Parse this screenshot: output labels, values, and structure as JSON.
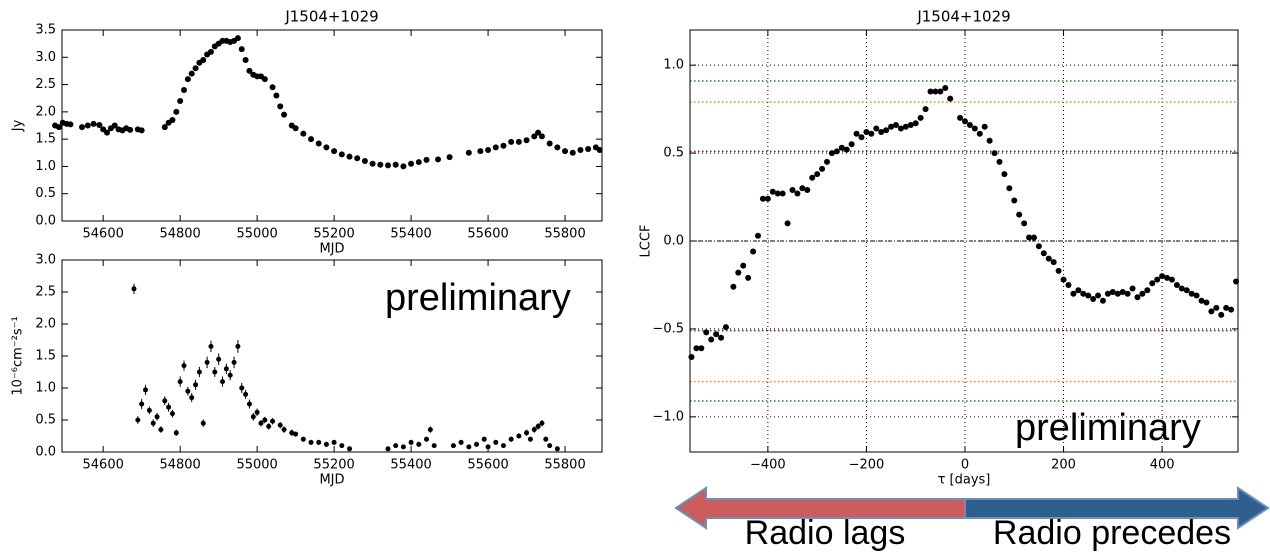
{
  "chart_data": [
    {
      "type": "scatter",
      "title": "J1504+1029",
      "xlabel": "MJD",
      "ylabel": "Jy",
      "color": "#000000",
      "xlim": [
        54493,
        55896
      ],
      "xticks": [
        54600,
        54800,
        55000,
        55200,
        55400,
        55600,
        55800
      ],
      "ylim": [
        0,
        3.5
      ],
      "yticks": [
        {
          "value": 0,
          "label": "0.0"
        },
        0.5,
        {
          "value": 1,
          "label": "1.0"
        },
        1.5,
        {
          "value": 2,
          "label": "2.0"
        },
        2.5,
        {
          "value": 3,
          "label": "3.0"
        },
        3.5
      ],
      "x": [
        54475,
        54485,
        54495,
        54505,
        54515,
        54545,
        54560,
        54575,
        54590,
        54600,
        54610,
        54620,
        54630,
        54640,
        54650,
        54660,
        54670,
        54690,
        54700,
        54760,
        54770,
        54780,
        54790,
        54800,
        54810,
        54820,
        54830,
        54840,
        54850,
        54860,
        54870,
        54880,
        54890,
        54900,
        54910,
        54920,
        54930,
        54940,
        54950,
        54960,
        54970,
        54980,
        54990,
        55000,
        55010,
        55020,
        55040,
        55050,
        55060,
        55070,
        55090,
        55100,
        55120,
        55140,
        55160,
        55180,
        55200,
        55220,
        55240,
        55260,
        55280,
        55300,
        55320,
        55340,
        55360,
        55380,
        55400,
        55420,
        55440,
        55470,
        55500,
        55550,
        55580,
        55600,
        55620,
        55640,
        55660,
        55680,
        55700,
        55720,
        55730,
        55740,
        55760,
        55780,
        55800,
        55820,
        55840,
        55860,
        55880,
        55890
      ],
      "values": [
        1.75,
        1.72,
        1.8,
        1.78,
        1.77,
        1.72,
        1.75,
        1.78,
        1.76,
        1.68,
        1.62,
        1.7,
        1.75,
        1.68,
        1.66,
        1.7,
        1.67,
        1.68,
        1.66,
        1.72,
        1.8,
        1.85,
        2.0,
        2.2,
        2.4,
        2.6,
        2.7,
        2.8,
        2.9,
        2.95,
        3.05,
        3.1,
        3.2,
        3.25,
        3.3,
        3.3,
        3.28,
        3.3,
        3.35,
        3.15,
        2.95,
        2.75,
        2.68,
        2.65,
        2.65,
        2.6,
        2.45,
        2.3,
        2.1,
        1.95,
        1.75,
        1.7,
        1.6,
        1.5,
        1.42,
        1.35,
        1.28,
        1.22,
        1.18,
        1.15,
        1.1,
        1.05,
        1.03,
        1.02,
        1.03,
        1.0,
        1.05,
        1.08,
        1.12,
        1.13,
        1.17,
        1.25,
        1.28,
        1.3,
        1.35,
        1.38,
        1.45,
        1.45,
        1.48,
        1.55,
        1.62,
        1.55,
        1.42,
        1.35,
        1.28,
        1.25,
        1.3,
        1.32,
        1.35,
        1.3
      ]
    },
    {
      "type": "errorbar",
      "xlabel": "MJD",
      "ylabel": "10⁻⁶cm⁻²s⁻¹",
      "color": "#000000",
      "annotation": {
        "text": "preliminary",
        "color": "#4f6228"
      },
      "xlim": [
        54493,
        55896
      ],
      "xticks": [
        54600,
        54800,
        55000,
        55200,
        55400,
        55600,
        55800
      ],
      "ylim": [
        0,
        3
      ],
      "yticks": [
        {
          "value": 0,
          "label": "0.0"
        },
        0.5,
        {
          "value": 1,
          "label": "1.0"
        },
        1.5,
        {
          "value": 2,
          "label": "2.0"
        },
        2.5,
        {
          "value": 3,
          "label": "3.0"
        }
      ],
      "x": [
        54680,
        54690,
        54700,
        54710,
        54720,
        54730,
        54740,
        54750,
        54760,
        54770,
        54780,
        54790,
        54800,
        54810,
        54820,
        54830,
        54840,
        54850,
        54860,
        54870,
        54880,
        54890,
        54900,
        54910,
        54920,
        54930,
        54940,
        54950,
        54960,
        54970,
        54980,
        54990,
        55000,
        55010,
        55020,
        55030,
        55040,
        55060,
        55070,
        55090,
        55100,
        55120,
        55140,
        55160,
        55180,
        55200,
        55220,
        55240,
        55340,
        55360,
        55380,
        55400,
        55420,
        55440,
        55450,
        55460,
        55510,
        55530,
        55550,
        55570,
        55590,
        55600,
        55620,
        55640,
        55660,
        55680,
        55700,
        55710,
        55720,
        55730,
        55740,
        55750,
        55760,
        55780
      ],
      "values": [
        2.55,
        0.5,
        0.75,
        0.97,
        0.65,
        0.45,
        0.55,
        0.35,
        0.8,
        0.7,
        0.6,
        0.3,
        1.1,
        1.35,
        0.95,
        0.85,
        1.05,
        1.25,
        0.45,
        1.4,
        1.65,
        1.25,
        1.45,
        1.1,
        1.3,
        1.2,
        1.4,
        1.65,
        1.0,
        0.9,
        0.75,
        0.55,
        0.62,
        0.45,
        0.5,
        0.4,
        0.48,
        0.42,
        0.35,
        0.3,
        0.28,
        0.2,
        0.15,
        0.15,
        0.12,
        0.15,
        0.1,
        0.05,
        0.05,
        0.1,
        0.08,
        0.15,
        0.12,
        0.2,
        0.35,
        0.1,
        0.1,
        0.15,
        0.08,
        0.12,
        0.2,
        0.08,
        0.15,
        0.1,
        0.2,
        0.25,
        0.3,
        0.2,
        0.35,
        0.4,
        0.45,
        0.2,
        0.1,
        0.05
      ],
      "errors": [
        0.08,
        0.06,
        0.08,
        0.08,
        0.06,
        0.06,
        0.06,
        0.05,
        0.07,
        0.07,
        0.06,
        0.05,
        0.08,
        0.08,
        0.07,
        0.07,
        0.08,
        0.08,
        0.06,
        0.09,
        0.09,
        0.08,
        0.09,
        0.08,
        0.08,
        0.08,
        0.09,
        0.1,
        0.08,
        0.07,
        0.07,
        0.06,
        0.06,
        0.05,
        0.05,
        0.05,
        0.05,
        0.05,
        0.05,
        0.05,
        0.04,
        0.04,
        0.04,
        0.04,
        0.04,
        0.04,
        0.03,
        0.03,
        0.03,
        0.03,
        0.03,
        0.04,
        0.04,
        0.04,
        0.05,
        0.03,
        0.03,
        0.04,
        0.03,
        0.04,
        0.04,
        0.03,
        0.04,
        0.03,
        0.04,
        0.04,
        0.05,
        0.04,
        0.05,
        0.05,
        0.05,
        0.04,
        0.03,
        0.03
      ]
    },
    {
      "type": "scatter",
      "title": "J1504+1029",
      "xlabel": "τ [days]",
      "ylabel": "LCCF",
      "color": "#000000",
      "grid": true,
      "annotation": {
        "text": "preliminary",
        "color": "#4f6228"
      },
      "levels": [
        {
          "color": "#1f7a1f",
          "values": [
            0.91,
            -0.91
          ]
        },
        {
          "color": "#ff7f0e",
          "values": [
            0.79,
            -0.8
          ]
        },
        {
          "color": "#8b1a1a",
          "values": [
            0.51,
            -0.51
          ]
        }
      ],
      "xlim": [
        -558,
        554
      ],
      "xticks": [
        {
          "value": -400,
          "label": "−400"
        },
        {
          "value": -200,
          "label": "−200"
        },
        0,
        200,
        400
      ],
      "ylim": [
        -1.2,
        1.2
      ],
      "yticks": [
        {
          "value": -1,
          "label": "−1.0"
        },
        {
          "value": -0.5,
          "label": "−0.5"
        },
        {
          "value": 0,
          "label": "0.0"
        },
        0.5,
        {
          "value": 1,
          "label": "1.0"
        }
      ],
      "x": [
        -555,
        -545,
        -535,
        -525,
        -515,
        -505,
        -495,
        -485,
        -470,
        -460,
        -450,
        -440,
        -430,
        -420,
        -410,
        -400,
        -390,
        -380,
        -370,
        -360,
        -350,
        -340,
        -330,
        -320,
        -310,
        -300,
        -290,
        -280,
        -270,
        -260,
        -250,
        -240,
        -230,
        -220,
        -210,
        -200,
        -190,
        -180,
        -170,
        -160,
        -150,
        -140,
        -130,
        -120,
        -110,
        -100,
        -90,
        -80,
        -70,
        -60,
        -50,
        -40,
        -30,
        -10,
        0,
        10,
        20,
        30,
        40,
        50,
        60,
        70,
        80,
        90,
        100,
        110,
        120,
        130,
        140,
        150,
        160,
        170,
        180,
        190,
        200,
        210,
        220,
        230,
        240,
        250,
        260,
        270,
        280,
        290,
        300,
        310,
        320,
        330,
        340,
        350,
        360,
        370,
        380,
        390,
        400,
        410,
        420,
        430,
        440,
        450,
        460,
        470,
        480,
        490,
        500,
        510,
        520,
        530,
        540,
        550
      ],
      "values": [
        -0.66,
        -0.61,
        -0.61,
        -0.52,
        -0.56,
        -0.53,
        -0.55,
        -0.49,
        -0.26,
        -0.18,
        -0.14,
        -0.21,
        -0.06,
        0.03,
        0.24,
        0.24,
        0.28,
        0.27,
        0.27,
        0.1,
        0.29,
        0.27,
        0.3,
        0.29,
        0.36,
        0.38,
        0.41,
        0.45,
        0.5,
        0.51,
        0.53,
        0.52,
        0.55,
        0.61,
        0.59,
        0.62,
        0.61,
        0.64,
        0.62,
        0.63,
        0.65,
        0.66,
        0.64,
        0.65,
        0.66,
        0.67,
        0.7,
        0.75,
        0.85,
        0.85,
        0.85,
        0.87,
        0.81,
        0.7,
        0.68,
        0.66,
        0.64,
        0.61,
        0.65,
        0.57,
        0.5,
        0.45,
        0.38,
        0.3,
        0.23,
        0.15,
        0.1,
        0.02,
        0.02,
        -0.03,
        -0.07,
        -0.1,
        -0.12,
        -0.17,
        -0.22,
        -0.25,
        -0.3,
        -0.28,
        -0.3,
        -0.31,
        -0.33,
        -0.31,
        -0.34,
        -0.3,
        -0.29,
        -0.3,
        -0.29,
        -0.3,
        -0.27,
        -0.32,
        -0.3,
        -0.28,
        -0.24,
        -0.22,
        -0.2,
        -0.21,
        -0.22,
        -0.25,
        -0.27,
        -0.28,
        -0.3,
        -0.31,
        -0.34,
        -0.35,
        -0.4,
        -0.38,
        -0.42,
        -0.38,
        -0.39,
        -0.23
      ]
    }
  ],
  "arrows": {
    "left": "Radio lags",
    "right": "Radio precedes"
  }
}
